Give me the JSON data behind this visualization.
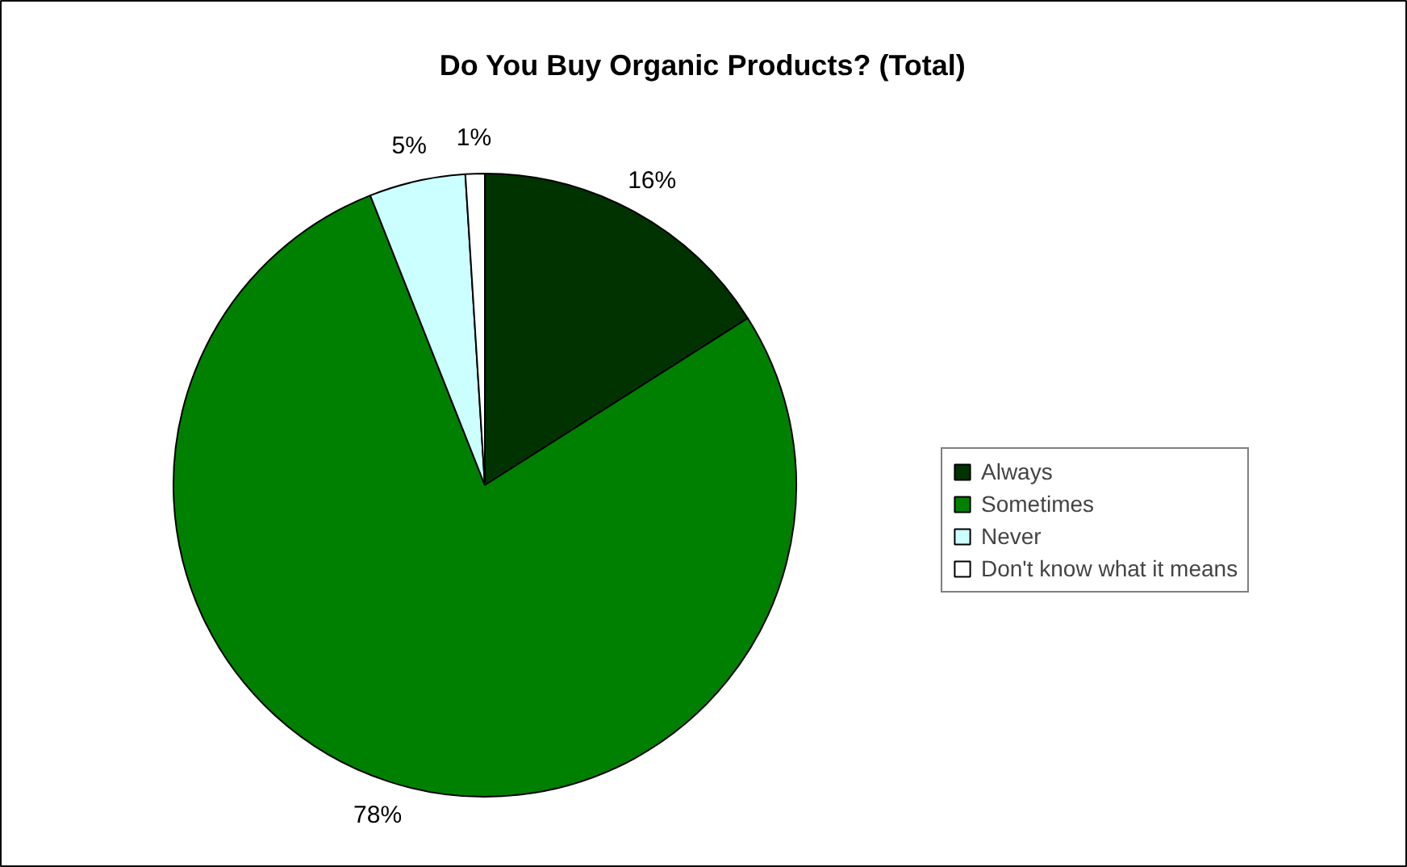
{
  "chart_data": {
    "type": "pie",
    "title": "Do You Buy Organic Products? (Total)",
    "categories": [
      "Always",
      "Sometimes",
      "Never",
      "Don't know what it means"
    ],
    "values": [
      16,
      78,
      5,
      1
    ],
    "colors": [
      "#003300",
      "#008000",
      "#ccffff",
      "#ffffff"
    ],
    "value_labels": [
      "16%",
      "78%",
      "5%",
      "1%"
    ],
    "legend": "right"
  }
}
